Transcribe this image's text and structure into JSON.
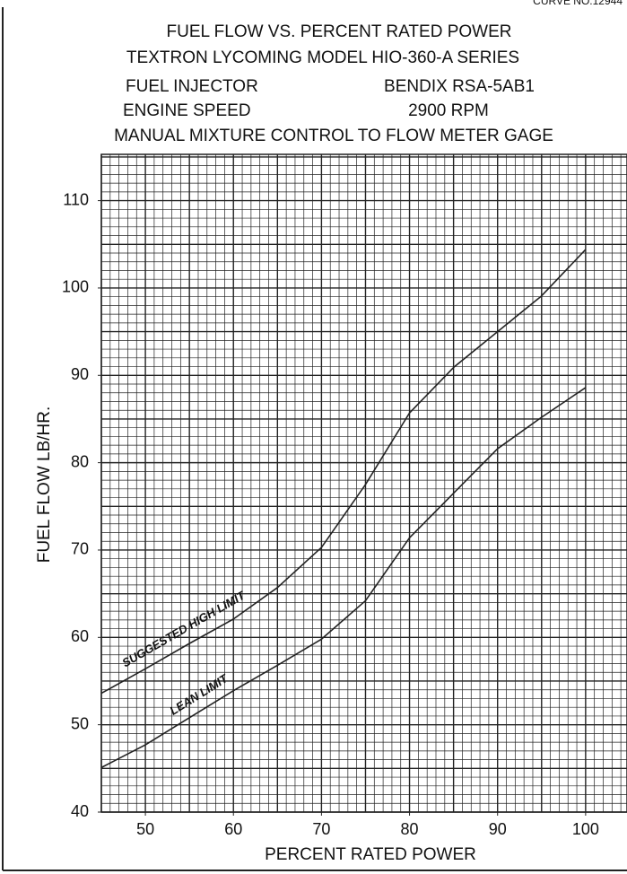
{
  "chart_data": {
    "type": "line",
    "corner_note": "CURVE NO.12944",
    "title": "FUEL FLOW VS. PERCENT RATED POWER",
    "subtitle": "TEXTRON LYCOMING MODEL HIO-360-A SERIES",
    "specs": [
      {
        "label": "FUEL INJECTOR",
        "value": "BENDIX RSA-5AB1"
      },
      {
        "label": "ENGINE SPEED",
        "value": "2900 RPM"
      }
    ],
    "note": "MANUAL MIXTURE CONTROL TO FLOW METER GAGE",
    "x_label": "PERCENT  RATED POWER",
    "y_label": "FUEL  FLOW  LB/HR.",
    "x": [
      45,
      50,
      55,
      60,
      65,
      70,
      75,
      80,
      85,
      90,
      95,
      100
    ],
    "series": [
      {
        "name": "SUGGESTED HIGH LIMIT",
        "color": "#222",
        "values": [
          53.6,
          56.4,
          59.3,
          62.1,
          65.7,
          70.3,
          77.5,
          85.7,
          90.9,
          95,
          99.1,
          104.4
        ]
      },
      {
        "name": "LEAN LIMIT",
        "color": "#222",
        "values": [
          45.1,
          47.7,
          50.8,
          53.9,
          56.8,
          59.8,
          64.2,
          71.4,
          76.5,
          81.6,
          85.2,
          88.6
        ]
      }
    ],
    "xlim": [
      45,
      104.7
    ],
    "ylim": [
      40,
      115.3
    ],
    "xticks": [
      50,
      60,
      70,
      80,
      90,
      100
    ],
    "yticks": [
      40,
      50,
      60,
      70,
      80,
      90,
      100,
      110
    ],
    "grid": true,
    "minor_grid": 1
  }
}
